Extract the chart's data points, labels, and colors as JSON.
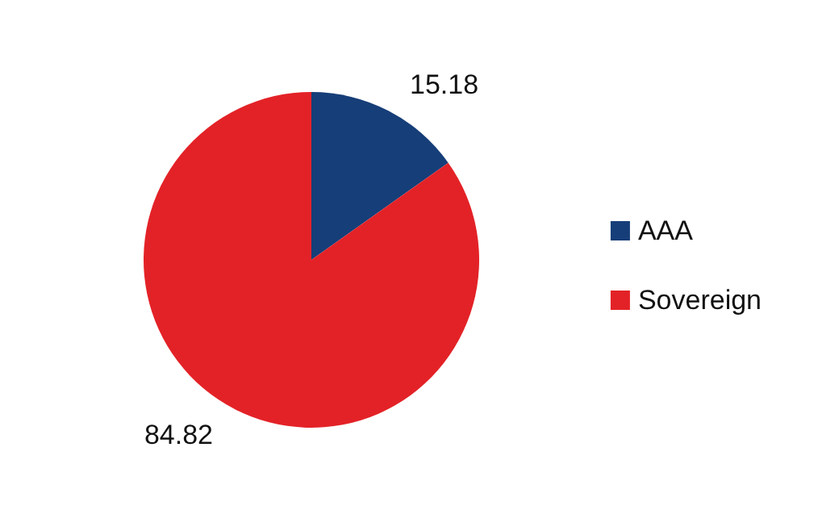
{
  "chart_data": {
    "type": "pie",
    "categories": [
      "AAA",
      "Sovereign"
    ],
    "values": [
      15.18,
      84.82
    ],
    "colors": [
      "#163e78",
      "#e32227"
    ],
    "data_labels": true,
    "legend": "right"
  }
}
